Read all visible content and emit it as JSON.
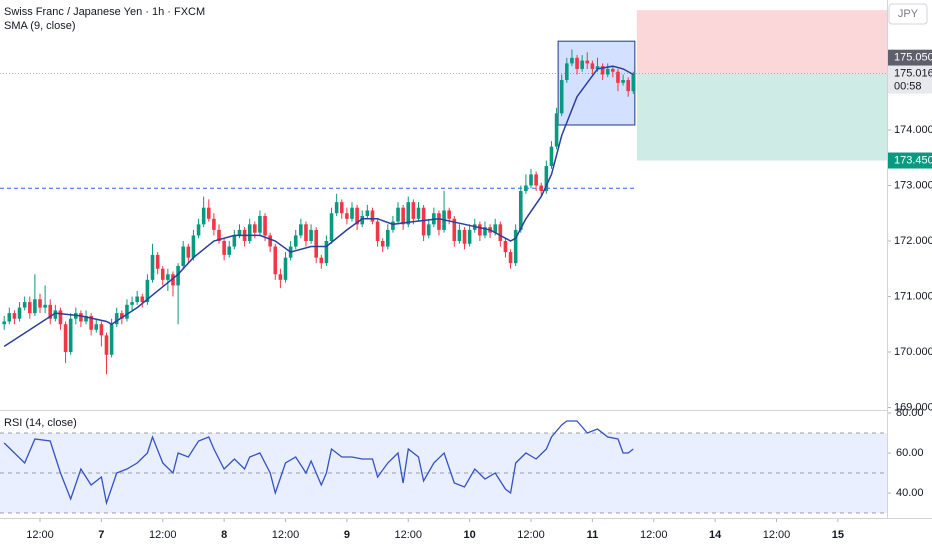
{
  "chart_data": [
    {
      "type": "candlestick",
      "title": "Swiss Franc / Japanese Yen · 1h · FXCM",
      "subtitle": "SMA (9, close)",
      "currency": "JPY",
      "countdown": "00:58",
      "up_color": "#089981",
      "down_color": "#f23645",
      "xlim": [
        -0.82,
        172.6
      ],
      "ylim": [
        168.955,
        176.342
      ],
      "yticks": [
        {
          "value": 169,
          "label": "169.000"
        },
        {
          "value": 170,
          "label": "170.000"
        },
        {
          "value": 171,
          "label": "171.000"
        },
        {
          "value": 172,
          "label": "172.000"
        },
        {
          "value": 173,
          "label": "173.000"
        },
        {
          "value": 174,
          "label": "174.000"
        }
      ],
      "xticks": [
        {
          "value": 7,
          "label": "12:00"
        },
        {
          "value": 19,
          "label": "7"
        },
        {
          "value": 31,
          "label": "12:00"
        },
        {
          "value": 43,
          "label": "8"
        },
        {
          "value": 55,
          "label": "12:00"
        },
        {
          "value": 67,
          "label": "9"
        },
        {
          "value": 79,
          "label": "12:00"
        },
        {
          "value": 91,
          "label": "10"
        },
        {
          "value": 103,
          "label": "12:00"
        },
        {
          "value": 115,
          "label": "11"
        },
        {
          "value": 127,
          "label": "12:00"
        },
        {
          "value": 139,
          "label": "14"
        },
        {
          "value": 151,
          "label": "12:00"
        },
        {
          "value": 163,
          "label": "15"
        }
      ],
      "ohlc": [
        [
          170.5,
          170.65,
          170.4,
          170.55
        ],
        [
          170.55,
          170.8,
          170.5,
          170.7
        ],
        [
          170.7,
          170.75,
          170.5,
          170.6
        ],
        [
          170.6,
          170.9,
          170.55,
          170.8
        ],
        [
          170.8,
          171.0,
          170.75,
          170.9
        ],
        [
          170.9,
          171.0,
          170.6,
          170.7
        ],
        [
          170.7,
          171.4,
          170.65,
          170.95
        ],
        [
          170.95,
          171.05,
          170.7,
          170.8
        ],
        [
          170.8,
          171.2,
          170.7,
          170.85
        ],
        [
          170.85,
          170.95,
          170.5,
          170.6
        ],
        [
          170.6,
          170.85,
          170.55,
          170.75
        ],
        [
          170.75,
          170.8,
          170.4,
          170.5
        ],
        [
          170.5,
          170.55,
          169.8,
          170.0
        ],
        [
          170.0,
          170.7,
          169.95,
          170.6
        ],
        [
          170.6,
          170.8,
          170.5,
          170.7
        ],
        [
          170.7,
          170.75,
          170.45,
          170.55
        ],
        [
          170.55,
          170.75,
          170.5,
          170.65
        ],
        [
          170.65,
          170.7,
          170.3,
          170.4
        ],
        [
          170.4,
          170.6,
          170.35,
          170.5
        ],
        [
          170.5,
          170.55,
          170.1,
          170.3
        ],
        [
          170.3,
          170.35,
          169.6,
          169.95
        ],
        [
          169.95,
          170.6,
          169.9,
          170.5
        ],
        [
          170.5,
          170.8,
          170.45,
          170.7
        ],
        [
          170.7,
          170.75,
          170.5,
          170.6
        ],
        [
          170.6,
          170.95,
          170.55,
          170.85
        ],
        [
          170.85,
          171.0,
          170.75,
          170.9
        ],
        [
          170.9,
          171.1,
          170.85,
          171.0
        ],
        [
          171.0,
          171.05,
          170.8,
          170.9
        ],
        [
          170.9,
          171.4,
          170.85,
          171.3
        ],
        [
          171.3,
          171.95,
          171.25,
          171.75
        ],
        [
          171.75,
          171.8,
          171.4,
          171.5
        ],
        [
          171.5,
          171.55,
          171.2,
          171.3
        ],
        [
          171.3,
          171.5,
          171.1,
          171.4
        ],
        [
          171.4,
          171.45,
          171.0,
          171.2
        ],
        [
          171.2,
          171.6,
          170.5,
          171.55
        ],
        [
          171.55,
          172.0,
          171.5,
          171.9
        ],
        [
          171.9,
          171.95,
          171.6,
          171.7
        ],
        [
          171.7,
          172.2,
          171.65,
          172.1
        ],
        [
          172.1,
          172.4,
          172.05,
          172.3
        ],
        [
          172.3,
          172.8,
          172.25,
          172.6
        ],
        [
          172.6,
          172.75,
          172.35,
          172.4
        ],
        [
          172.4,
          172.5,
          172.1,
          172.2
        ],
        [
          172.2,
          172.3,
          171.95,
          172.0
        ],
        [
          172.0,
          172.05,
          171.65,
          171.75
        ],
        [
          171.75,
          172.0,
          171.7,
          171.9
        ],
        [
          171.9,
          172.2,
          171.85,
          172.1
        ],
        [
          172.1,
          172.3,
          172.05,
          172.2
        ],
        [
          172.2,
          172.25,
          171.9,
          172.0
        ],
        [
          172.0,
          172.4,
          171.95,
          172.3
        ],
        [
          172.3,
          172.35,
          172.05,
          172.15
        ],
        [
          172.15,
          172.55,
          172.1,
          172.45
        ],
        [
          172.45,
          172.5,
          172.0,
          172.1
        ],
        [
          172.1,
          172.15,
          171.8,
          171.9
        ],
        [
          171.9,
          171.95,
          171.3,
          171.4
        ],
        [
          171.4,
          171.5,
          171.15,
          171.3
        ],
        [
          171.3,
          171.8,
          171.25,
          171.7
        ],
        [
          171.7,
          172.0,
          171.65,
          171.9
        ],
        [
          171.9,
          172.2,
          171.85,
          172.1
        ],
        [
          172.1,
          172.4,
          172.05,
          172.3
        ],
        [
          172.3,
          172.35,
          171.9,
          172.0
        ],
        [
          172.0,
          172.3,
          171.95,
          172.2
        ],
        [
          172.2,
          172.25,
          171.6,
          171.7
        ],
        [
          171.7,
          171.75,
          171.5,
          171.6
        ],
        [
          171.6,
          172.1,
          171.55,
          172.0
        ],
        [
          172.0,
          172.6,
          171.95,
          172.5
        ],
        [
          172.5,
          172.85,
          172.45,
          172.7
        ],
        [
          172.7,
          172.75,
          172.4,
          172.5
        ],
        [
          172.5,
          172.6,
          172.3,
          172.4
        ],
        [
          172.4,
          172.7,
          172.35,
          172.6
        ],
        [
          172.6,
          172.65,
          172.2,
          172.3
        ],
        [
          172.3,
          172.55,
          172.25,
          172.45
        ],
        [
          172.45,
          172.65,
          172.4,
          172.55
        ],
        [
          172.55,
          172.6,
          172.3,
          172.35
        ],
        [
          172.35,
          172.4,
          171.9,
          172.0
        ],
        [
          172.0,
          172.05,
          171.8,
          171.9
        ],
        [
          171.9,
          172.3,
          171.85,
          172.2
        ],
        [
          172.2,
          172.45,
          172.15,
          172.35
        ],
        [
          172.35,
          172.7,
          172.3,
          172.6
        ],
        [
          172.6,
          172.65,
          172.2,
          172.3
        ],
        [
          172.3,
          172.8,
          172.25,
          172.7
        ],
        [
          172.7,
          172.75,
          172.3,
          172.4
        ],
        [
          172.4,
          172.7,
          172.35,
          172.6
        ],
        [
          172.6,
          172.65,
          172.0,
          172.1
        ],
        [
          172.1,
          172.4,
          172.05,
          172.3
        ],
        [
          172.3,
          172.6,
          172.25,
          172.5
        ],
        [
          172.5,
          172.55,
          172.1,
          172.2
        ],
        [
          172.2,
          172.9,
          172.15,
          172.55
        ],
        [
          172.55,
          172.6,
          172.3,
          172.4
        ],
        [
          172.4,
          172.45,
          171.9,
          172.0
        ],
        [
          172.0,
          172.3,
          171.95,
          172.2
        ],
        [
          172.2,
          172.25,
          171.85,
          171.95
        ],
        [
          171.95,
          172.3,
          171.9,
          172.2
        ],
        [
          172.2,
          172.4,
          172.15,
          172.3
        ],
        [
          172.3,
          172.35,
          172.0,
          172.1
        ],
        [
          172.1,
          172.35,
          172.05,
          172.25
        ],
        [
          172.25,
          172.3,
          172.05,
          172.15
        ],
        [
          172.15,
          172.4,
          172.1,
          172.3
        ],
        [
          172.3,
          172.35,
          171.9,
          172.0
        ],
        [
          172.0,
          172.05,
          171.7,
          171.8
        ],
        [
          171.8,
          171.85,
          171.5,
          171.6
        ],
        [
          171.6,
          172.3,
          171.55,
          172.2
        ],
        [
          172.2,
          173.0,
          172.15,
          172.9
        ],
        [
          172.9,
          173.2,
          172.85,
          173.0
        ],
        [
          173.0,
          173.3,
          172.95,
          173.2
        ],
        [
          173.2,
          173.25,
          172.9,
          173.0
        ],
        [
          173.0,
          173.05,
          172.8,
          172.9
        ],
        [
          172.9,
          173.45,
          172.85,
          173.35
        ],
        [
          173.35,
          173.8,
          173.3,
          173.7
        ],
        [
          173.7,
          174.4,
          173.65,
          174.3
        ],
        [
          174.3,
          175.0,
          174.25,
          174.9
        ],
        [
          174.9,
          175.3,
          174.85,
          175.2
        ],
        [
          175.2,
          175.45,
          175.15,
          175.3
        ],
        [
          175.3,
          175.35,
          175.0,
          175.1
        ],
        [
          175.1,
          175.35,
          175.05,
          175.25
        ],
        [
          175.25,
          175.4,
          175.1,
          175.2
        ],
        [
          175.2,
          175.25,
          175.0,
          175.1
        ],
        [
          175.1,
          175.3,
          175.05,
          175.15
        ],
        [
          175.15,
          175.2,
          174.9,
          175.0
        ],
        [
          175.0,
          175.2,
          174.95,
          175.1
        ],
        [
          175.1,
          175.15,
          174.95,
          175.05
        ],
        [
          175.05,
          175.1,
          174.7,
          174.85
        ],
        [
          174.85,
          175.0,
          174.8,
          174.9
        ],
        [
          174.9,
          174.95,
          174.6,
          174.7
        ],
        [
          174.7,
          175.05,
          174.65,
          175.016
        ]
      ],
      "sma": {
        "color": "#2a3f9e",
        "x": [
          0,
          5,
          10,
          15,
          20,
          21,
          26,
          30,
          34,
          37,
          41,
          45,
          50,
          53,
          56,
          60,
          63,
          67,
          70,
          73,
          76,
          80,
          85,
          90,
          95,
          99,
          100,
          102,
          105,
          107,
          109,
          112,
          116,
          119,
          121,
          123
        ],
        "values": [
          170.1,
          170.4,
          170.7,
          170.65,
          170.55,
          170.5,
          170.8,
          171.1,
          171.4,
          171.7,
          172.0,
          172.1,
          172.1,
          172.0,
          171.8,
          171.9,
          171.9,
          172.2,
          172.4,
          172.4,
          172.3,
          172.35,
          172.4,
          172.3,
          172.2,
          172.0,
          172.05,
          172.4,
          172.8,
          173.2,
          173.9,
          174.6,
          175.1,
          175.15,
          175.1,
          175.0
        ]
      },
      "level_line": 172.95,
      "box": {
        "x": [
          108.3,
          123.3
        ],
        "y": [
          174.09,
          175.6
        ]
      },
      "position": {
        "start": 123.7,
        "top": 176.16,
        "entry": 175.016,
        "stop": 173.45
      },
      "price_labels": [
        {
          "value": 175.05,
          "label": "175.050"
        },
        {
          "value": 175.016,
          "label": "175.016"
        },
        {
          "value": 173.45,
          "label": "173.450"
        }
      ]
    },
    {
      "type": "line",
      "title": "RSI (14, close)",
      "color": "#3452c4",
      "ylim": [
        27.5,
        81.5
      ],
      "yticks": [
        {
          "value": 80,
          "label": "80.00"
        },
        {
          "value": 60,
          "label": "60.00"
        },
        {
          "value": 40,
          "label": "40.00"
        }
      ],
      "bands": [
        70,
        50,
        30
      ],
      "x": [
        0,
        4,
        6,
        9,
        11,
        13,
        15,
        17,
        19,
        20,
        22,
        24,
        26,
        28,
        29,
        31,
        33,
        34,
        36,
        38,
        40,
        41,
        43,
        45,
        47,
        48,
        50,
        52,
        53,
        55,
        57,
        59,
        60,
        62,
        63,
        64,
        66,
        68,
        70,
        72,
        73,
        75,
        77,
        78,
        79,
        81,
        82,
        84,
        86,
        88,
        90,
        92,
        94,
        96,
        98,
        99,
        100,
        102,
        104,
        106,
        107,
        109,
        110,
        112,
        114,
        116,
        118,
        120,
        121,
        122,
        123
      ],
      "values": [
        65,
        55,
        67,
        66,
        50,
        37,
        52,
        44,
        48,
        35,
        50,
        52,
        55,
        60,
        68,
        55,
        50,
        60,
        58,
        66,
        68,
        62,
        52,
        57,
        52,
        58,
        60,
        50,
        40,
        55,
        58,
        50,
        56,
        44,
        50,
        62,
        58,
        58,
        57,
        57,
        48,
        55,
        60,
        45,
        62,
        58,
        46,
        55,
        60,
        45,
        43,
        52,
        47,
        50,
        42,
        40,
        55,
        60,
        57,
        62,
        68,
        74,
        76,
        76,
        70,
        72,
        68,
        67,
        60,
        60,
        62
      ]
    }
  ]
}
